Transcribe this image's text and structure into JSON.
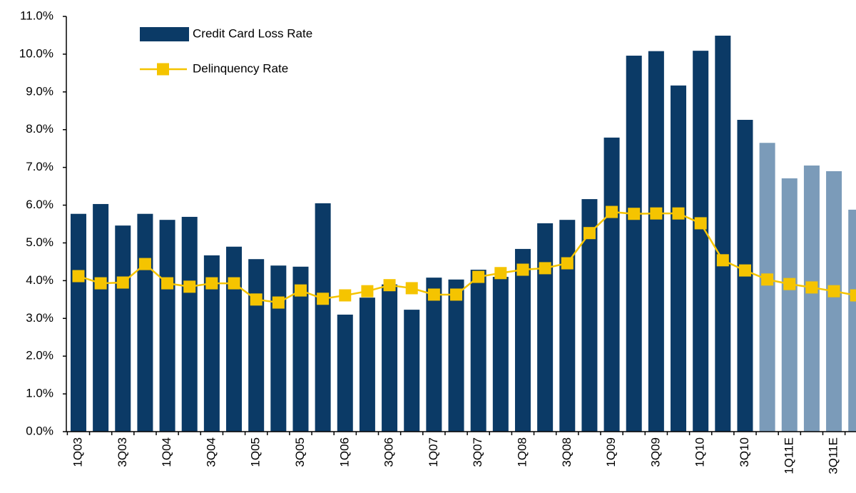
{
  "chart_data": {
    "type": "bar_line",
    "categories": [
      "1Q03",
      null,
      "3Q03",
      null,
      "1Q04",
      null,
      "3Q04",
      null,
      "1Q05",
      null,
      "3Q05",
      null,
      "1Q06",
      null,
      "3Q06",
      null,
      "1Q07",
      null,
      "3Q07",
      null,
      "1Q08",
      null,
      "3Q08",
      null,
      "1Q09",
      null,
      "3Q09",
      null,
      "1Q10",
      null,
      "3Q10",
      null,
      "1Q11E",
      null,
      "3Q11E",
      null
    ],
    "series": [
      {
        "name": "Credit Card Loss Rate",
        "type": "bar",
        "colors": [
          "#0b3a66",
          "#0b3a66",
          "#0b3a66",
          "#0b3a66",
          "#0b3a66",
          "#0b3a66",
          "#0b3a66",
          "#0b3a66",
          "#0b3a66",
          "#0b3a66",
          "#0b3a66",
          "#0b3a66",
          "#0b3a66",
          "#0b3a66",
          "#0b3a66",
          "#0b3a66",
          "#0b3a66",
          "#0b3a66",
          "#0b3a66",
          "#0b3a66",
          "#0b3a66",
          "#0b3a66",
          "#0b3a66",
          "#0b3a66",
          "#0b3a66",
          "#0b3a66",
          "#0b3a66",
          "#0b3a66",
          "#0b3a66",
          "#0b3a66",
          "#0b3a66",
          "#7b9bb9",
          "#7b9bb9",
          "#7b9bb9",
          "#7b9bb9",
          "#7b9bb9"
        ],
        "color": "#0b3a66",
        "values": [
          5.77,
          6.03,
          5.46,
          5.77,
          5.61,
          5.69,
          4.67,
          4.9,
          4.57,
          4.4,
          4.37,
          6.05,
          3.1,
          3.55,
          3.9,
          3.23,
          4.08,
          4.03,
          4.29,
          4.1,
          4.84,
          5.52,
          5.61,
          6.16,
          7.79,
          9.96,
          10.08,
          9.17,
          10.09,
          10.49,
          8.26,
          7.65,
          6.71,
          7.05,
          6.9,
          5.88
        ]
      },
      {
        "name": "Delinquency Rate",
        "type": "line",
        "color": "#f5c400",
        "values": [
          4.12,
          3.93,
          3.95,
          4.44,
          3.93,
          3.84,
          3.93,
          3.93,
          3.5,
          3.42,
          3.74,
          3.52,
          3.61,
          3.72,
          3.88,
          3.8,
          3.63,
          3.63,
          4.1,
          4.2,
          4.29,
          4.33,
          4.46,
          5.26,
          5.82,
          5.77,
          5.78,
          5.78,
          5.52,
          4.54,
          4.27,
          4.03,
          3.91,
          3.82,
          3.72,
          3.61
        ]
      }
    ],
    "ylim": [
      0,
      11
    ],
    "yticks": [
      {
        "value": 0,
        "label": "0.0%"
      },
      {
        "value": 1,
        "label": "1.0%"
      },
      {
        "value": 2,
        "label": "2.0%"
      },
      {
        "value": 3,
        "label": "3.0%"
      },
      {
        "value": 4,
        "label": "4.0%"
      },
      {
        "value": 5,
        "label": "5.0%"
      },
      {
        "value": 6,
        "label": "6.0%"
      },
      {
        "value": 7,
        "label": "7.0%"
      },
      {
        "value": 8,
        "label": "8.0%"
      },
      {
        "value": 9,
        "label": "9.0%"
      },
      {
        "value": 10,
        "label": "10.0%"
      },
      {
        "value": 11,
        "label": "11.0%"
      }
    ],
    "grid": false,
    "legend": "top-left"
  }
}
